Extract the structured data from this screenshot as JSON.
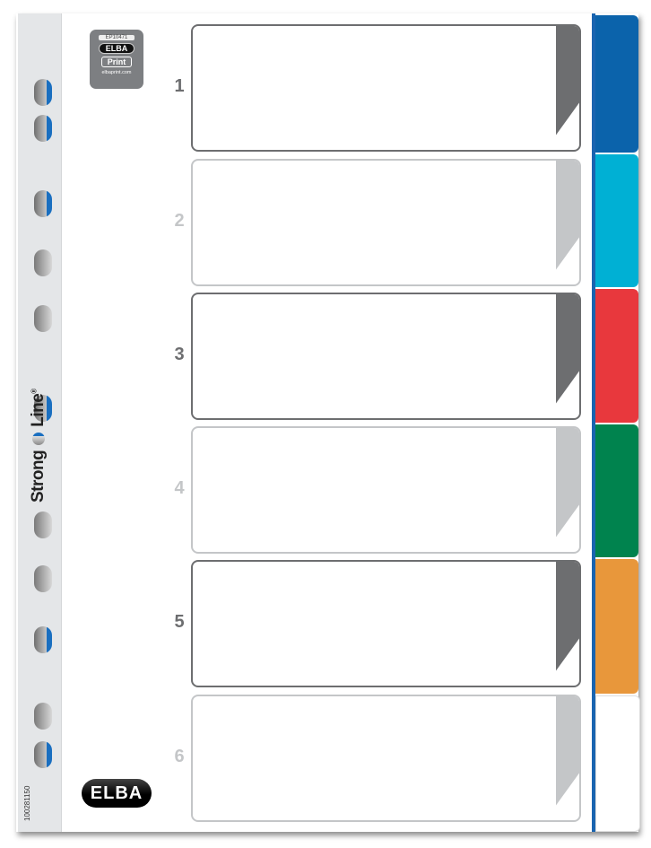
{
  "product": {
    "brand_line": [
      "Strong",
      "Line"
    ],
    "registered": "®",
    "article_code": "100281150",
    "print_badge": {
      "code": "EP10471",
      "brand": "ELBA",
      "label": "Print",
      "url": "elbaprint.com"
    },
    "logo": "ELBA"
  },
  "dividers": [
    {
      "number": "1",
      "style": "dark",
      "tab_color": "#0b63ab"
    },
    {
      "number": "2",
      "style": "light",
      "tab_color": "#00b0d4"
    },
    {
      "number": "3",
      "style": "dark",
      "tab_color": "#e8383d"
    },
    {
      "number": "4",
      "style": "light",
      "tab_color": "#00834e"
    },
    {
      "number": "5",
      "style": "dark",
      "tab_color": "#e8973b"
    },
    {
      "number": "6",
      "style": "light",
      "tab_color": "#ffffff"
    }
  ]
}
